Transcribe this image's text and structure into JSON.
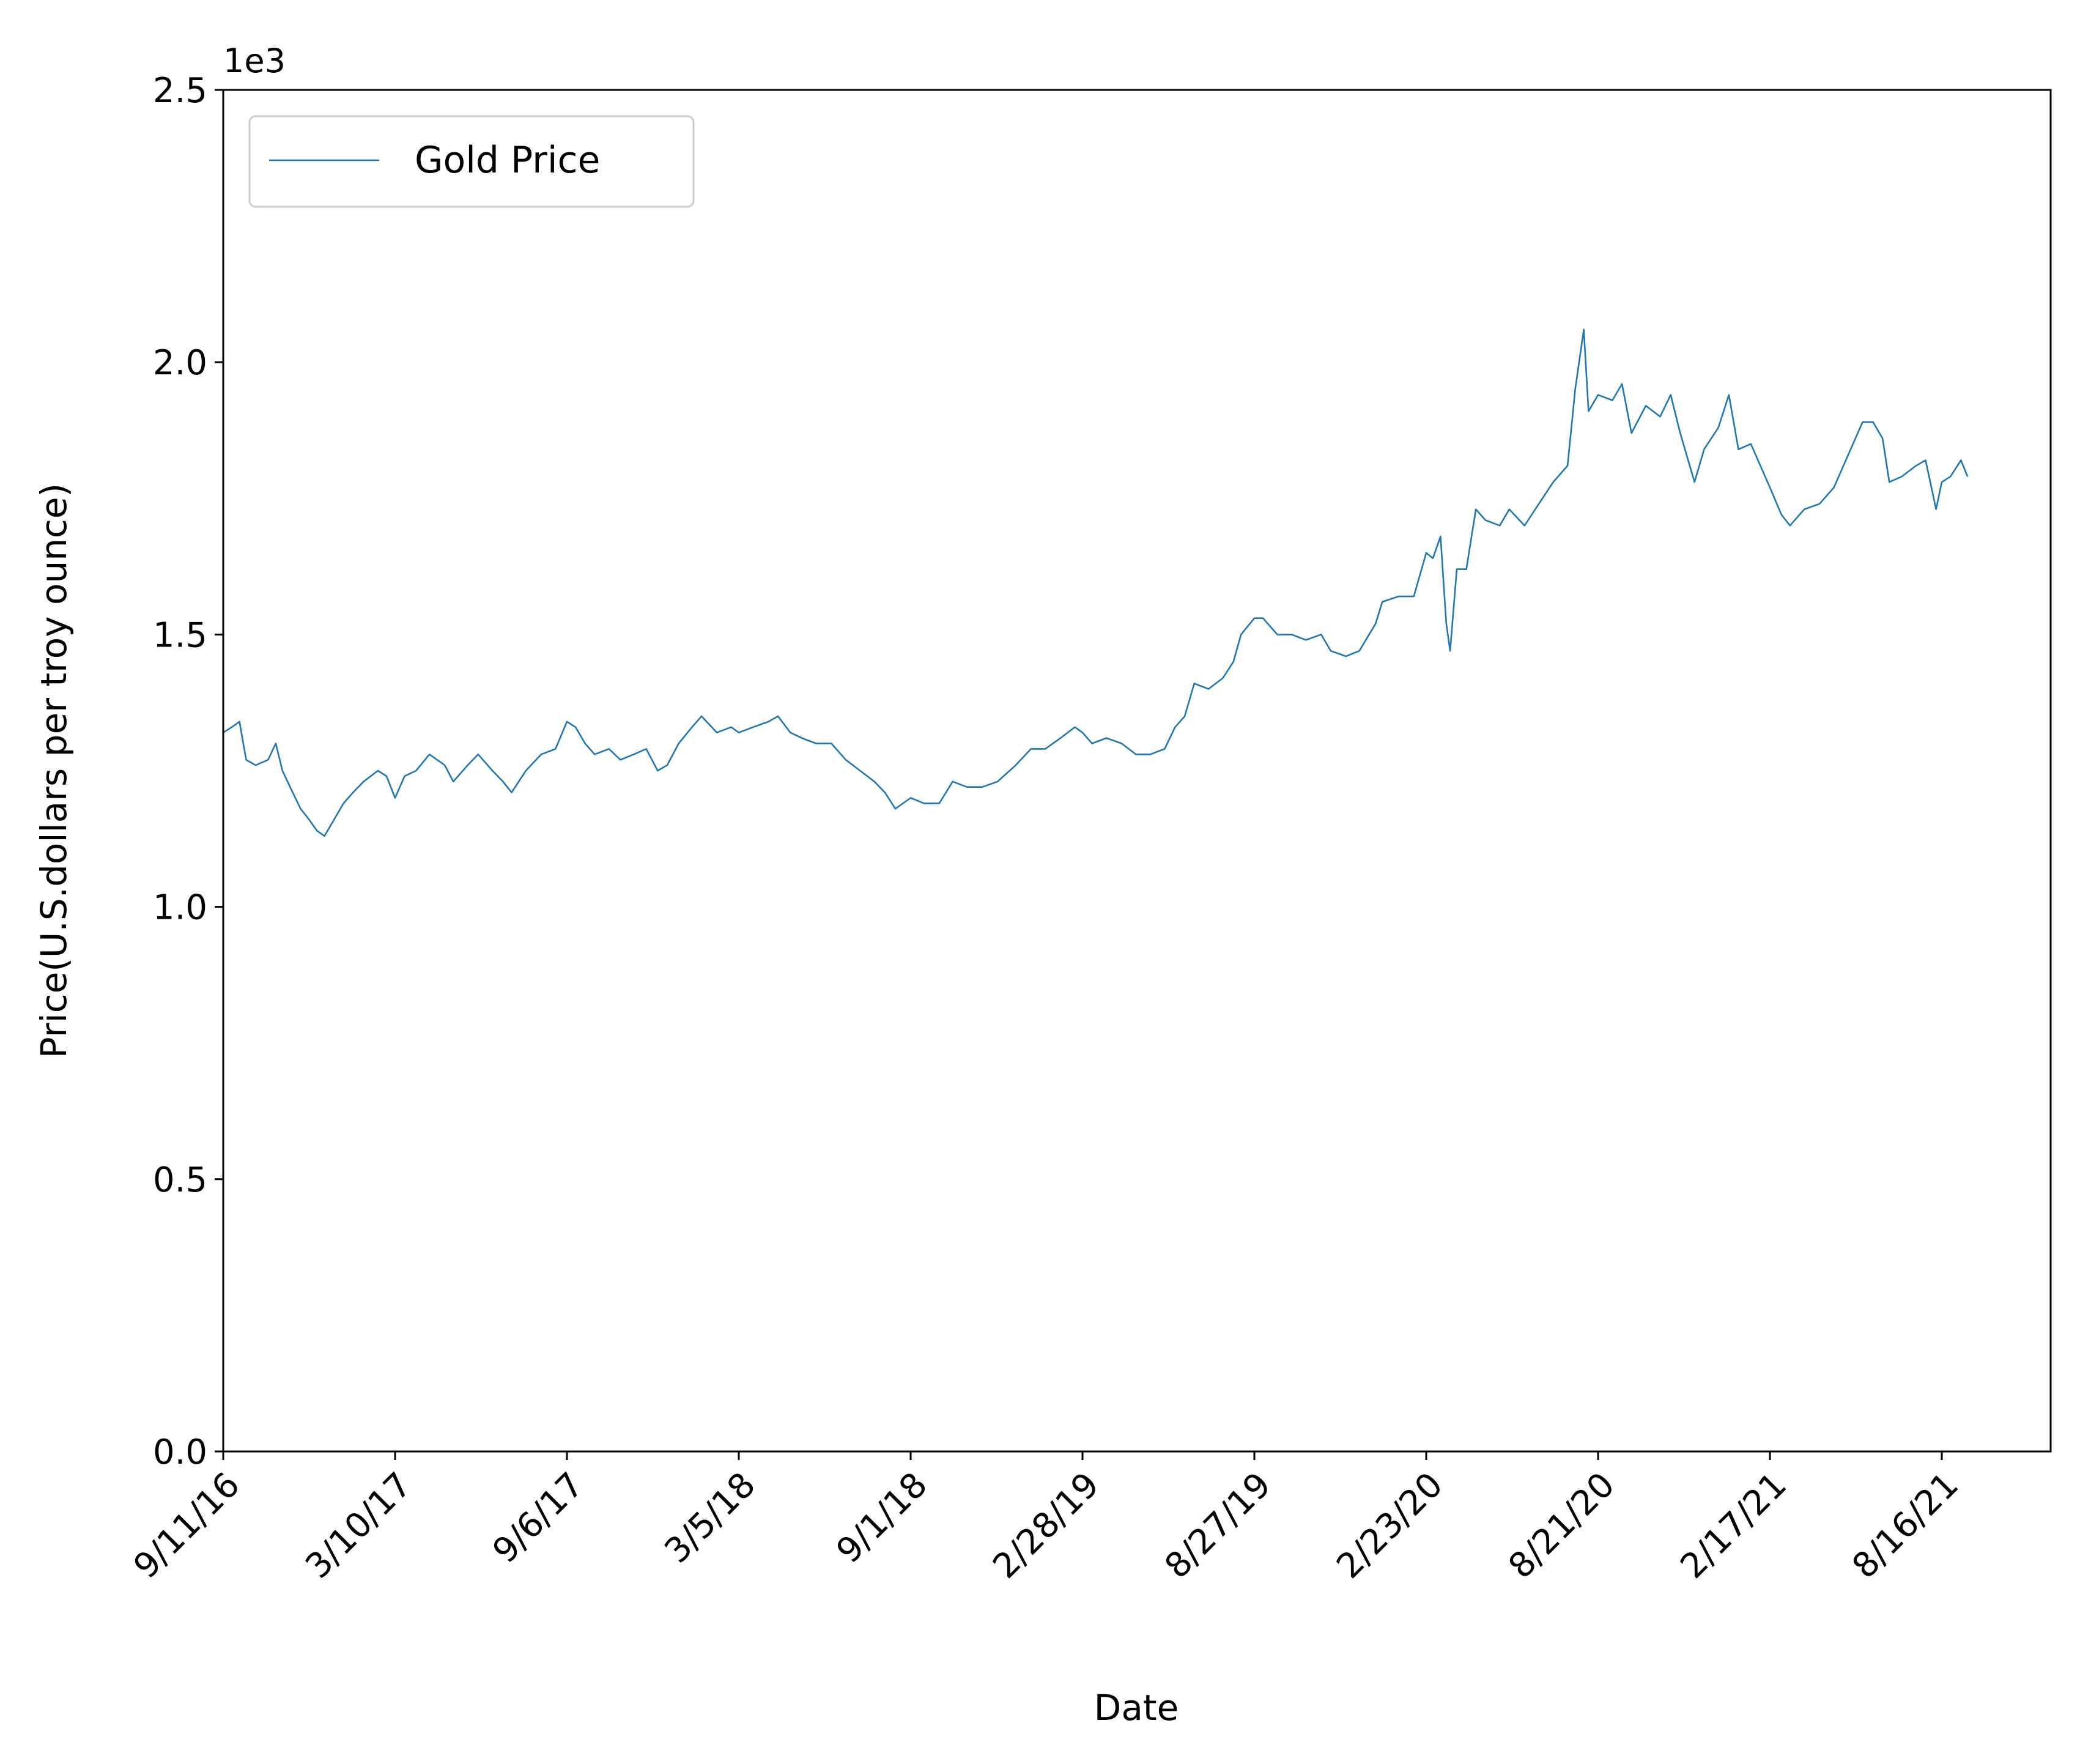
{
  "chart_data": {
    "type": "line",
    "xlabel": "Date",
    "ylabel": "Price(U.S.dollars per troy ounce)",
    "y_offset_label": "1e3",
    "ylim": [
      0.0,
      2.5
    ],
    "xlim": [
      "2016-09-11",
      "2021-12-08"
    ],
    "grid": false,
    "legend_position": "upper-left",
    "x_ticks": [
      {
        "label": "9/11/16",
        "date": "2016-09-11"
      },
      {
        "label": "3/10/17",
        "date": "2017-03-10"
      },
      {
        "label": "9/6/17",
        "date": "2017-09-06"
      },
      {
        "label": "3/5/18",
        "date": "2018-03-05"
      },
      {
        "label": "9/1/18",
        "date": "2018-09-01"
      },
      {
        "label": "2/28/19",
        "date": "2019-02-28"
      },
      {
        "label": "8/27/19",
        "date": "2019-08-27"
      },
      {
        "label": "2/23/20",
        "date": "2020-02-23"
      },
      {
        "label": "8/21/20",
        "date": "2020-08-21"
      },
      {
        "label": "2/17/21",
        "date": "2021-02-17"
      },
      {
        "label": "8/16/21",
        "date": "2021-08-16"
      }
    ],
    "y_ticks": [
      "0.0",
      "0.5",
      "1.0",
      "1.5",
      "2.0",
      "2.5"
    ],
    "series": [
      {
        "name": "Gold Price",
        "color": "#1f77b4",
        "points": [
          [
            "2016-09-11",
            1.32
          ],
          [
            "2016-09-20",
            1.33
          ],
          [
            "2016-09-28",
            1.34
          ],
          [
            "2016-10-05",
            1.27
          ],
          [
            "2016-10-15",
            1.26
          ],
          [
            "2016-10-28",
            1.27
          ],
          [
            "2016-11-05",
            1.3
          ],
          [
            "2016-11-12",
            1.25
          ],
          [
            "2016-11-20",
            1.22
          ],
          [
            "2016-12-01",
            1.18
          ],
          [
            "2016-12-10",
            1.16
          ],
          [
            "2016-12-18",
            1.14
          ],
          [
            "2016-12-26",
            1.13
          ],
          [
            "2017-01-05",
            1.16
          ],
          [
            "2017-01-15",
            1.19
          ],
          [
            "2017-01-25",
            1.21
          ],
          [
            "2017-02-05",
            1.23
          ],
          [
            "2017-02-20",
            1.25
          ],
          [
            "2017-03-01",
            1.24
          ],
          [
            "2017-03-10",
            1.2
          ],
          [
            "2017-03-20",
            1.24
          ],
          [
            "2017-04-01",
            1.25
          ],
          [
            "2017-04-15",
            1.28
          ],
          [
            "2017-05-01",
            1.26
          ],
          [
            "2017-05-10",
            1.23
          ],
          [
            "2017-05-25",
            1.26
          ],
          [
            "2017-06-05",
            1.28
          ],
          [
            "2017-06-20",
            1.25
          ],
          [
            "2017-07-01",
            1.23
          ],
          [
            "2017-07-10",
            1.21
          ],
          [
            "2017-07-25",
            1.25
          ],
          [
            "2017-08-10",
            1.28
          ],
          [
            "2017-08-25",
            1.29
          ],
          [
            "2017-09-06",
            1.34
          ],
          [
            "2017-09-15",
            1.33
          ],
          [
            "2017-09-25",
            1.3
          ],
          [
            "2017-10-05",
            1.28
          ],
          [
            "2017-10-20",
            1.29
          ],
          [
            "2017-11-01",
            1.27
          ],
          [
            "2017-11-15",
            1.28
          ],
          [
            "2017-11-28",
            1.29
          ],
          [
            "2017-12-10",
            1.25
          ],
          [
            "2017-12-20",
            1.26
          ],
          [
            "2018-01-01",
            1.3
          ],
          [
            "2018-01-15",
            1.33
          ],
          [
            "2018-01-25",
            1.35
          ],
          [
            "2018-02-10",
            1.32
          ],
          [
            "2018-02-25",
            1.33
          ],
          [
            "2018-03-05",
            1.32
          ],
          [
            "2018-03-20",
            1.33
          ],
          [
            "2018-04-05",
            1.34
          ],
          [
            "2018-04-15",
            1.35
          ],
          [
            "2018-04-28",
            1.32
          ],
          [
            "2018-05-10",
            1.31
          ],
          [
            "2018-05-25",
            1.3
          ],
          [
            "2018-06-10",
            1.3
          ],
          [
            "2018-06-25",
            1.27
          ],
          [
            "2018-07-10",
            1.25
          ],
          [
            "2018-07-25",
            1.23
          ],
          [
            "2018-08-05",
            1.21
          ],
          [
            "2018-08-16",
            1.18
          ],
          [
            "2018-09-01",
            1.2
          ],
          [
            "2018-09-15",
            1.19
          ],
          [
            "2018-10-01",
            1.19
          ],
          [
            "2018-10-15",
            1.23
          ],
          [
            "2018-10-30",
            1.22
          ],
          [
            "2018-11-15",
            1.22
          ],
          [
            "2018-12-01",
            1.23
          ],
          [
            "2018-12-20",
            1.26
          ],
          [
            "2019-01-05",
            1.29
          ],
          [
            "2019-01-20",
            1.29
          ],
          [
            "2019-02-05",
            1.31
          ],
          [
            "2019-02-20",
            1.33
          ],
          [
            "2019-02-28",
            1.32
          ],
          [
            "2019-03-10",
            1.3
          ],
          [
            "2019-03-25",
            1.31
          ],
          [
            "2019-04-10",
            1.3
          ],
          [
            "2019-04-25",
            1.28
          ],
          [
            "2019-05-10",
            1.28
          ],
          [
            "2019-05-25",
            1.29
          ],
          [
            "2019-06-05",
            1.33
          ],
          [
            "2019-06-15",
            1.35
          ],
          [
            "2019-06-25",
            1.41
          ],
          [
            "2019-07-10",
            1.4
          ],
          [
            "2019-07-25",
            1.42
          ],
          [
            "2019-08-05",
            1.45
          ],
          [
            "2019-08-13",
            1.5
          ],
          [
            "2019-08-27",
            1.53
          ],
          [
            "2019-09-05",
            1.53
          ],
          [
            "2019-09-20",
            1.5
          ],
          [
            "2019-10-05",
            1.5
          ],
          [
            "2019-10-20",
            1.49
          ],
          [
            "2019-11-05",
            1.5
          ],
          [
            "2019-11-15",
            1.47
          ],
          [
            "2019-12-01",
            1.46
          ],
          [
            "2019-12-15",
            1.47
          ],
          [
            "2020-01-01",
            1.52
          ],
          [
            "2020-01-08",
            1.56
          ],
          [
            "2020-01-25",
            1.57
          ],
          [
            "2020-02-10",
            1.57
          ],
          [
            "2020-02-23",
            1.65
          ],
          [
            "2020-03-01",
            1.64
          ],
          [
            "2020-03-09",
            1.68
          ],
          [
            "2020-03-15",
            1.52
          ],
          [
            "2020-03-19",
            1.47
          ],
          [
            "2020-03-26",
            1.62
          ],
          [
            "2020-04-05",
            1.62
          ],
          [
            "2020-04-15",
            1.73
          ],
          [
            "2020-04-25",
            1.71
          ],
          [
            "2020-05-10",
            1.7
          ],
          [
            "2020-05-20",
            1.73
          ],
          [
            "2020-06-05",
            1.7
          ],
          [
            "2020-06-20",
            1.74
          ],
          [
            "2020-07-05",
            1.78
          ],
          [
            "2020-07-20",
            1.81
          ],
          [
            "2020-07-28",
            1.95
          ],
          [
            "2020-08-06",
            2.06
          ],
          [
            "2020-08-11",
            1.91
          ],
          [
            "2020-08-21",
            1.94
          ],
          [
            "2020-09-05",
            1.93
          ],
          [
            "2020-09-15",
            1.96
          ],
          [
            "2020-09-25",
            1.87
          ],
          [
            "2020-10-10",
            1.92
          ],
          [
            "2020-10-25",
            1.9
          ],
          [
            "2020-11-05",
            1.94
          ],
          [
            "2020-11-15",
            1.87
          ],
          [
            "2020-11-30",
            1.78
          ],
          [
            "2020-12-10",
            1.84
          ],
          [
            "2020-12-25",
            1.88
          ],
          [
            "2021-01-05",
            1.94
          ],
          [
            "2021-01-15",
            1.84
          ],
          [
            "2021-01-28",
            1.85
          ],
          [
            "2021-02-17",
            1.77
          ],
          [
            "2021-03-01",
            1.72
          ],
          [
            "2021-03-10",
            1.7
          ],
          [
            "2021-03-25",
            1.73
          ],
          [
            "2021-04-10",
            1.74
          ],
          [
            "2021-04-25",
            1.77
          ],
          [
            "2021-05-10",
            1.83
          ],
          [
            "2021-05-25",
            1.89
          ],
          [
            "2021-06-05",
            1.89
          ],
          [
            "2021-06-15",
            1.86
          ],
          [
            "2021-06-22",
            1.78
          ],
          [
            "2021-07-05",
            1.79
          ],
          [
            "2021-07-20",
            1.81
          ],
          [
            "2021-07-30",
            1.82
          ],
          [
            "2021-08-10",
            1.73
          ],
          [
            "2021-08-16",
            1.78
          ],
          [
            "2021-08-25",
            1.79
          ],
          [
            "2021-09-05",
            1.82
          ],
          [
            "2021-09-12",
            1.79
          ]
        ]
      }
    ]
  }
}
